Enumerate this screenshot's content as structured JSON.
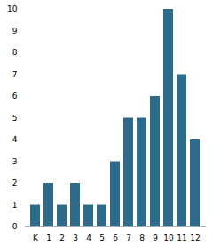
{
  "chart_data": {
    "type": "bar",
    "categories": [
      "K",
      "1",
      "2",
      "3",
      "4",
      "5",
      "6",
      "7",
      "8",
      "9",
      "10",
      "11",
      "12"
    ],
    "values": [
      1,
      2,
      1,
      2,
      1,
      1,
      3,
      5,
      5,
      6,
      10,
      7,
      4
    ],
    "color": "#2e6b8a",
    "ylim": [
      0,
      10
    ],
    "yticks": [
      0,
      1,
      2,
      3,
      4,
      5,
      6,
      7,
      8,
      9,
      10
    ],
    "grid": false
  }
}
